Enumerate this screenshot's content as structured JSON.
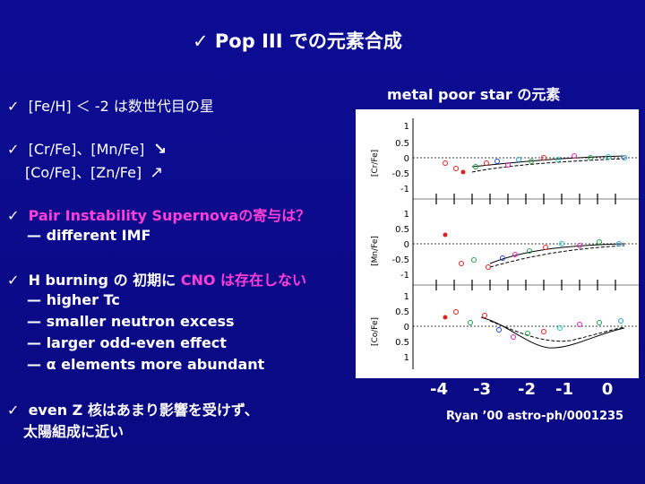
{
  "title": "✓ Pop III での元素合成",
  "bullets": {
    "b1_check": "✓",
    "b1_text": "[Fe/H] ＜ -2 は数世代目の星",
    "b2_check": "✓",
    "b2_line1": "[Cr/Fe]、[Mn/Fe]",
    "b2_line2": "[Co/Fe]、[Zn/Fe]",
    "b2_arrow_down": "↘",
    "b2_arrow_up": "↗",
    "b3_check": "✓",
    "b3_text": "Pair Instability Supernovaの寄与は？",
    "b3_sub": "— different IMF",
    "b4_check": "✓",
    "b4_text_a": "H burning の 初期に",
    "b4_text_b": "CNO は存在しない",
    "b4_sub1": "— higher Tc",
    "b4_sub2": "— smaller neutron excess",
    "b4_sub3": "— larger odd-even effect",
    "b4_sub4": "— α elements more abundant",
    "b5_check": "✓",
    "b5_line1": "even Z 核はあまり影響を受けず、",
    "b5_line2": "太陽組成に近い"
  },
  "figure": {
    "caption": "metal poor star の元素",
    "credit": "Ryan ’00 astro-ph/0001235",
    "x_ticks": [
      "-4",
      "-3",
      "-2",
      "-1",
      "0"
    ],
    "panel_labels": [
      "[Cr/Fe]",
      "[Mn/Fe]",
      "[Co/Fe]"
    ],
    "panel_y_ticks": [
      [
        "1",
        "0.5",
        "0",
        "-0.5",
        "-1"
      ],
      [
        "1",
        "0.5",
        "0",
        "-0.5",
        "-1"
      ],
      [
        "1",
        "0.5",
        "0",
        "0.5",
        "1"
      ]
    ]
  },
  "colors": {
    "background": "#0a0a8a",
    "text": "#ffffff",
    "highlight": "#ff3fd6"
  }
}
